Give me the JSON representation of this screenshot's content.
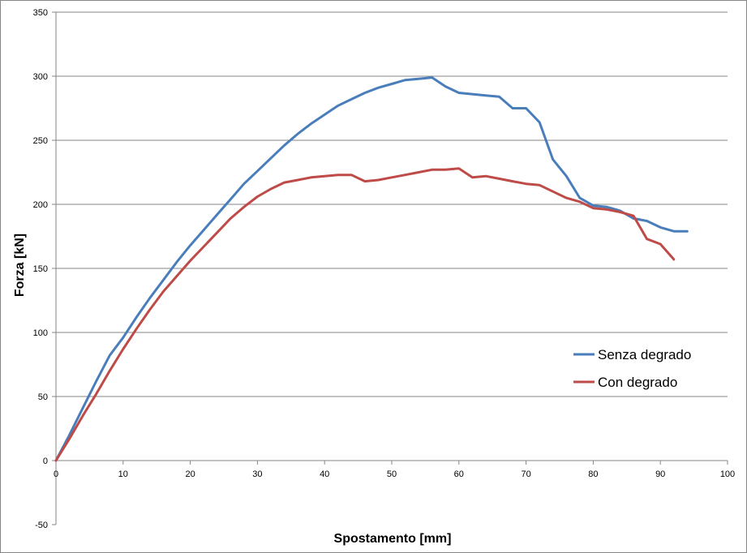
{
  "chart_data": {
    "type": "line",
    "xlabel": "Spostamento  [mm]",
    "ylabel": "Forza [kN]",
    "xlim": [
      0,
      100
    ],
    "ylim": [
      -50,
      350
    ],
    "x_ticks": [
      0,
      10,
      20,
      30,
      40,
      50,
      60,
      70,
      80,
      90,
      100
    ],
    "y_ticks": [
      -50,
      0,
      50,
      100,
      150,
      200,
      250,
      300,
      350
    ],
    "grid": "horizontal",
    "legend_position": "right-middle",
    "series": [
      {
        "name": "Senza degrado",
        "color": "#4a7ebb",
        "x": [
          0,
          2,
          4,
          6,
          8,
          10,
          12,
          14,
          16,
          18,
          20,
          22,
          24,
          26,
          28,
          30,
          32,
          34,
          36,
          38,
          40,
          42,
          44,
          46,
          48,
          50,
          52,
          54,
          56,
          58,
          60,
          62,
          64,
          66,
          68,
          70,
          72,
          74,
          76,
          78,
          80,
          82,
          84,
          86,
          88,
          90,
          92,
          94
        ],
        "y": [
          0,
          20,
          41,
          62,
          82,
          96,
          112,
          127,
          141,
          155,
          168,
          180,
          192,
          204,
          216,
          226,
          236,
          246,
          255,
          263,
          270,
          277,
          282,
          287,
          291,
          294,
          297,
          298,
          299,
          292,
          287,
          286,
          285,
          284,
          275,
          275,
          264,
          235,
          222,
          205,
          199,
          198,
          195,
          189,
          187,
          182,
          179,
          179
        ]
      },
      {
        "name": "Con degrado",
        "color": "#be4b48",
        "x": [
          0,
          2,
          4,
          6,
          8,
          10,
          12,
          14,
          16,
          18,
          20,
          22,
          24,
          26,
          28,
          30,
          32,
          34,
          36,
          38,
          40,
          42,
          44,
          46,
          48,
          50,
          52,
          54,
          56,
          58,
          60,
          62,
          64,
          66,
          68,
          70,
          72,
          74,
          76,
          78,
          80,
          82,
          84,
          86,
          88,
          90,
          92
        ],
        "y": [
          0,
          17,
          35,
          52,
          70,
          87,
          103,
          118,
          132,
          144,
          156,
          167,
          178,
          189,
          198,
          206,
          212,
          217,
          219,
          221,
          222,
          223,
          223,
          218,
          219,
          221,
          223,
          225,
          227,
          227,
          228,
          221,
          222,
          220,
          218,
          216,
          215,
          210,
          205,
          202,
          197,
          196,
          194,
          191,
          173,
          169,
          157
        ]
      }
    ]
  }
}
